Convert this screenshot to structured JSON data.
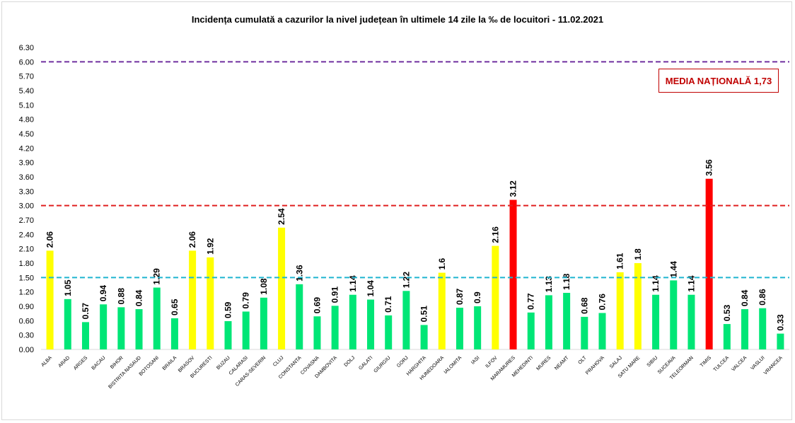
{
  "chart_data": {
    "type": "bar",
    "title": "Incidența cumulată a cazurilor la nivel județean în ultimele 14 zile la ‰ de locuitori - 11.02.2021",
    "annotation": "MEDIA NAȚIONALĂ 1,73",
    "xlabel": "",
    "ylabel": "",
    "ylim": [
      0,
      6.3
    ],
    "yticks": [
      "0.00",
      "0.30",
      "0.60",
      "0.90",
      "1.20",
      "1.50",
      "1.80",
      "2.10",
      "2.40",
      "2.70",
      "3.00",
      "3.30",
      "3.60",
      "3.90",
      "4.20",
      "4.50",
      "4.80",
      "5.10",
      "5.40",
      "5.70",
      "6.00",
      "6.30"
    ],
    "grid": false,
    "categories": [
      "ALBA",
      "ARAD",
      "ARGES",
      "BACAU",
      "BIHOR",
      "BISTRITA NASAUD",
      "BOTOSANI",
      "BRAILA",
      "BRASOV",
      "BUCURESTI",
      "BUZAU",
      "CALARASI",
      "CARAS-SEVERIN",
      "CLUJ",
      "CONSTANTA",
      "COVASNA",
      "DAMBOVITA",
      "DOLJ",
      "GALATI",
      "GIURGIU",
      "GORJ",
      "HARGHITA",
      "HUNEDOARA",
      "IALOMITA",
      "IASI",
      "ILFOV",
      "MARAMURES",
      "MEHEDINTI",
      "MURES",
      "NEAMT",
      "OLT",
      "PRAHOVA",
      "SALAJ",
      "SATU MARE",
      "SIBIU",
      "SUCEAVA",
      "TELEORMAN",
      "TIMIS",
      "TULCEA",
      "VALCEA",
      "VASLUI",
      "VRANCEA"
    ],
    "values": [
      2.06,
      1.05,
      0.57,
      0.94,
      0.88,
      0.84,
      1.29,
      0.65,
      2.06,
      1.92,
      0.59,
      0.79,
      1.08,
      2.54,
      1.36,
      0.69,
      0.91,
      1.14,
      1.04,
      0.71,
      1.22,
      0.51,
      1.6,
      0.87,
      0.9,
      2.16,
      3.12,
      0.77,
      1.13,
      1.18,
      0.68,
      0.76,
      1.61,
      1.8,
      1.14,
      1.44,
      1.14,
      3.56,
      0.53,
      0.84,
      0.86,
      0.33
    ],
    "data_labels": [
      "2.06",
      "1.05",
      "0.57",
      "0.94",
      "0.88",
      "0.84",
      "1.29",
      "0.65",
      "2.06",
      "1.92",
      "0.59",
      "0.79",
      "1.08",
      "2.54",
      "1.36",
      "0.69",
      "0.91",
      "1.14",
      "1.04",
      "0.71",
      "1.22",
      "0.51",
      "1.6",
      "0.87",
      "0.9",
      "2.16",
      "3.12",
      "0.77",
      "1.13",
      "1.18",
      "0.68",
      "0.76",
      "1.61",
      "1.8",
      "1.14",
      "1.44",
      "1.14",
      "3.56",
      "0.53",
      "0.84",
      "0.86",
      "0.33"
    ],
    "reference_lines": [
      {
        "value": 6.0,
        "color": "#7030a0"
      },
      {
        "value": 3.0,
        "color": "#e02020"
      },
      {
        "value": 1.5,
        "color": "#1fb5d0"
      }
    ],
    "colors": {
      "low": "#00e676",
      "medium": "#ffff00",
      "high": "#ff0000"
    }
  }
}
